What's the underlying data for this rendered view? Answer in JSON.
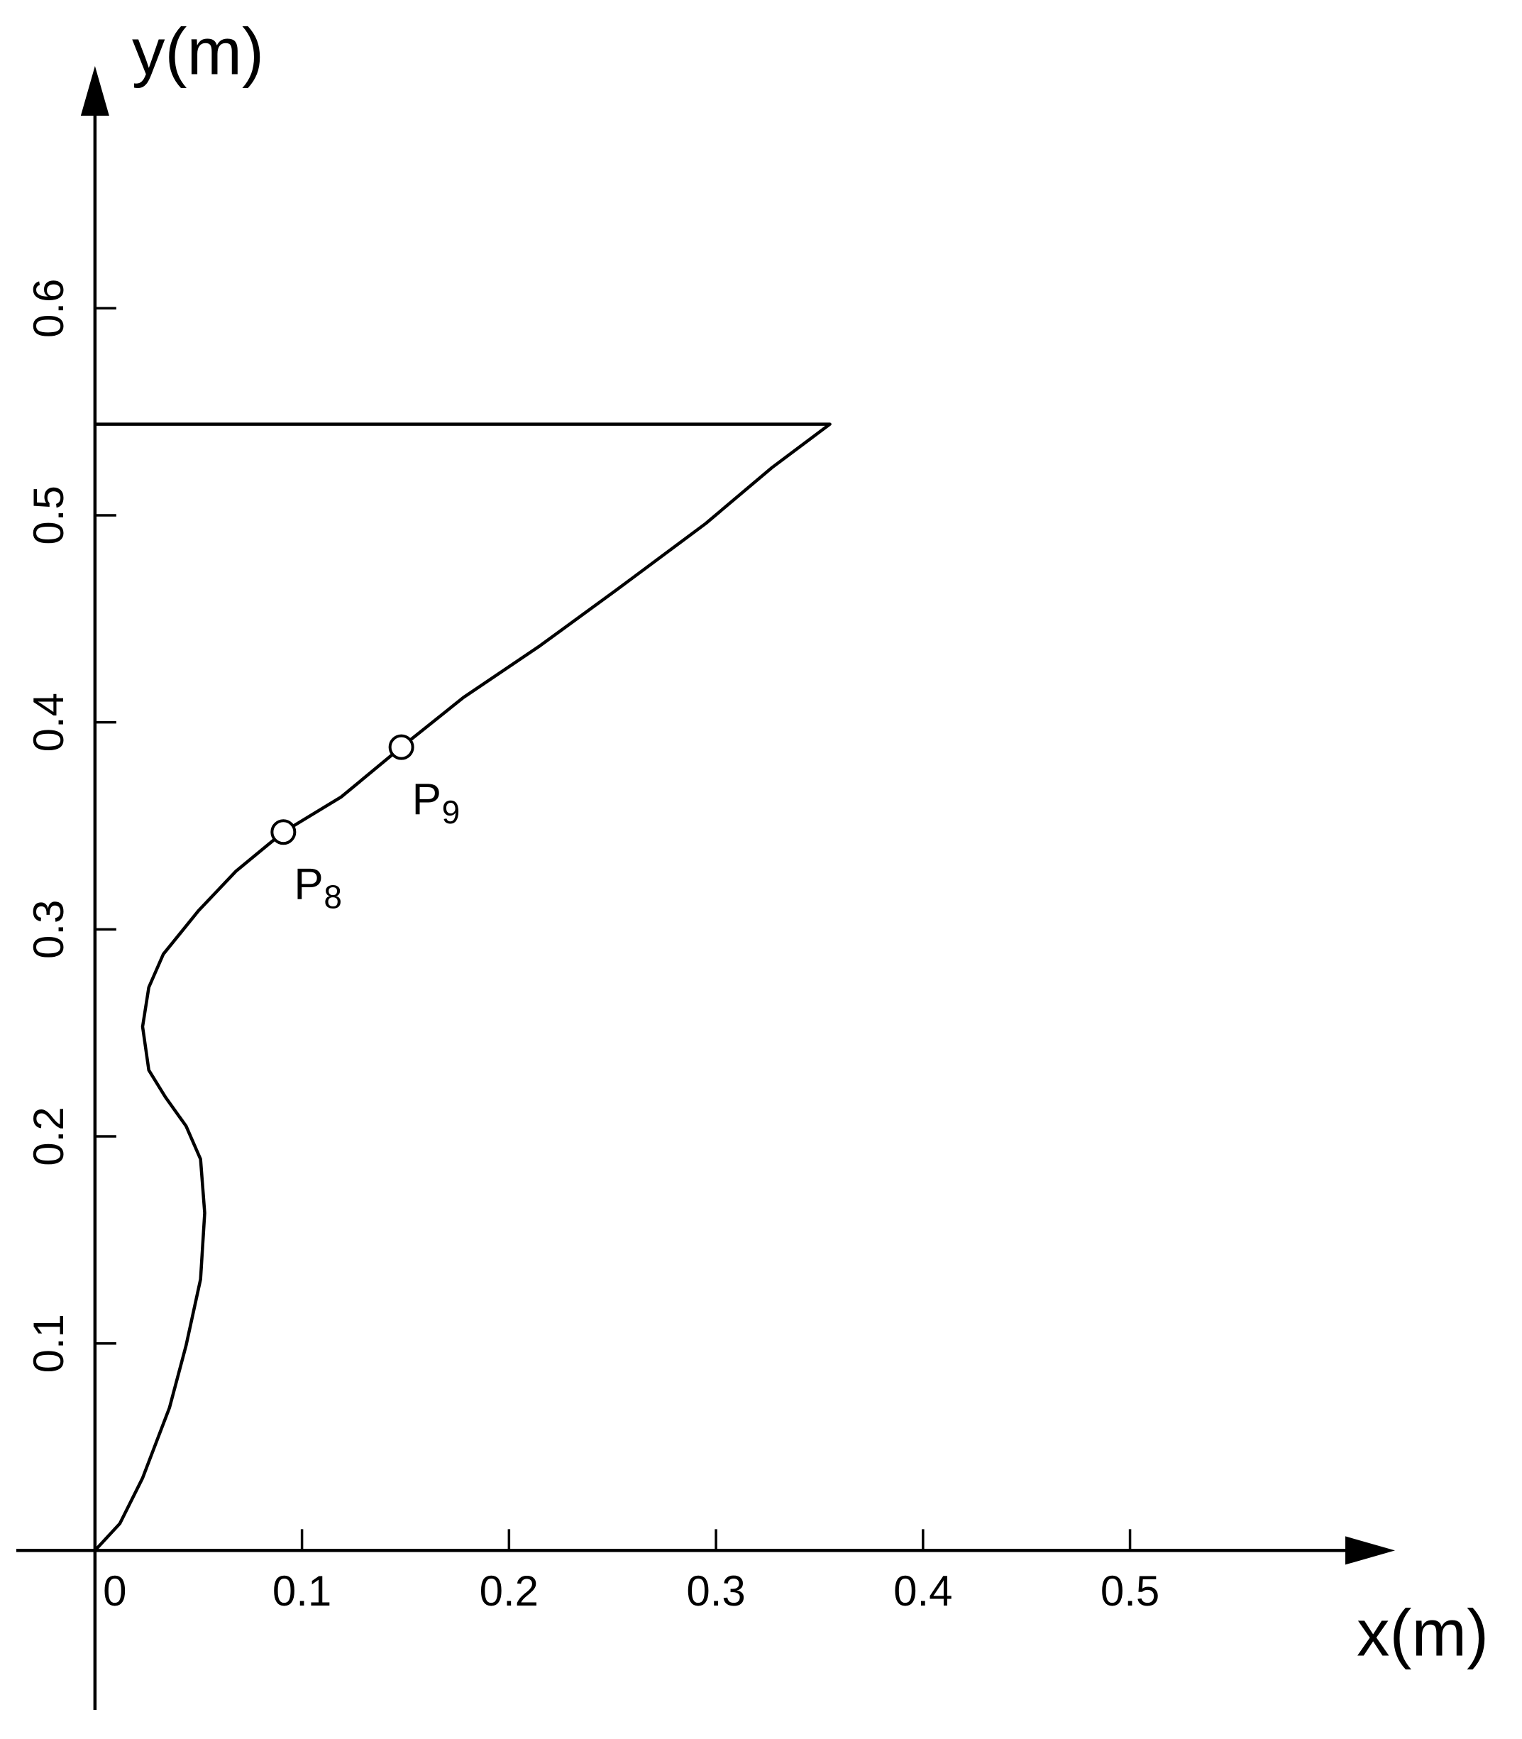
{
  "chart_data": {
    "type": "line",
    "x_label": "x(m)",
    "y_label": "y(m)",
    "x": [
      0,
      0.012,
      0.023,
      0.036,
      0.044,
      0.051,
      0.053,
      0.051,
      0.044,
      0.034,
      0.026,
      0.023,
      0.026,
      0.033,
      0.05,
      0.068,
      0.091,
      0.119,
      0.148,
      0.178,
      0.215,
      0.252,
      0.295,
      0.327,
      0.355,
      0
    ],
    "values": [
      0,
      0.013,
      0.035,
      0.069,
      0.099,
      0.131,
      0.163,
      0.189,
      0.205,
      0.219,
      0.232,
      0.253,
      0.272,
      0.288,
      0.309,
      0.328,
      0.347,
      0.364,
      0.388,
      0.412,
      0.437,
      0.464,
      0.496,
      0.523,
      0.544,
      0.544
    ],
    "color": "#000000",
    "xlim": [
      -0.038,
      0.628
    ],
    "ylim": [
      -0.077,
      0.717
    ],
    "xticks": [
      0,
      0.1,
      0.2,
      0.3,
      0.4,
      0.5
    ],
    "yticks": [
      0.1,
      0.2,
      0.3,
      0.4,
      0.5,
      0.6
    ],
    "grid": false,
    "annotations": [
      {
        "text": "P",
        "sub": "8",
        "x": 0.091,
        "y": 0.347
      },
      {
        "text": "P",
        "sub": "9",
        "x": 0.148,
        "y": 0.388
      }
    ]
  }
}
